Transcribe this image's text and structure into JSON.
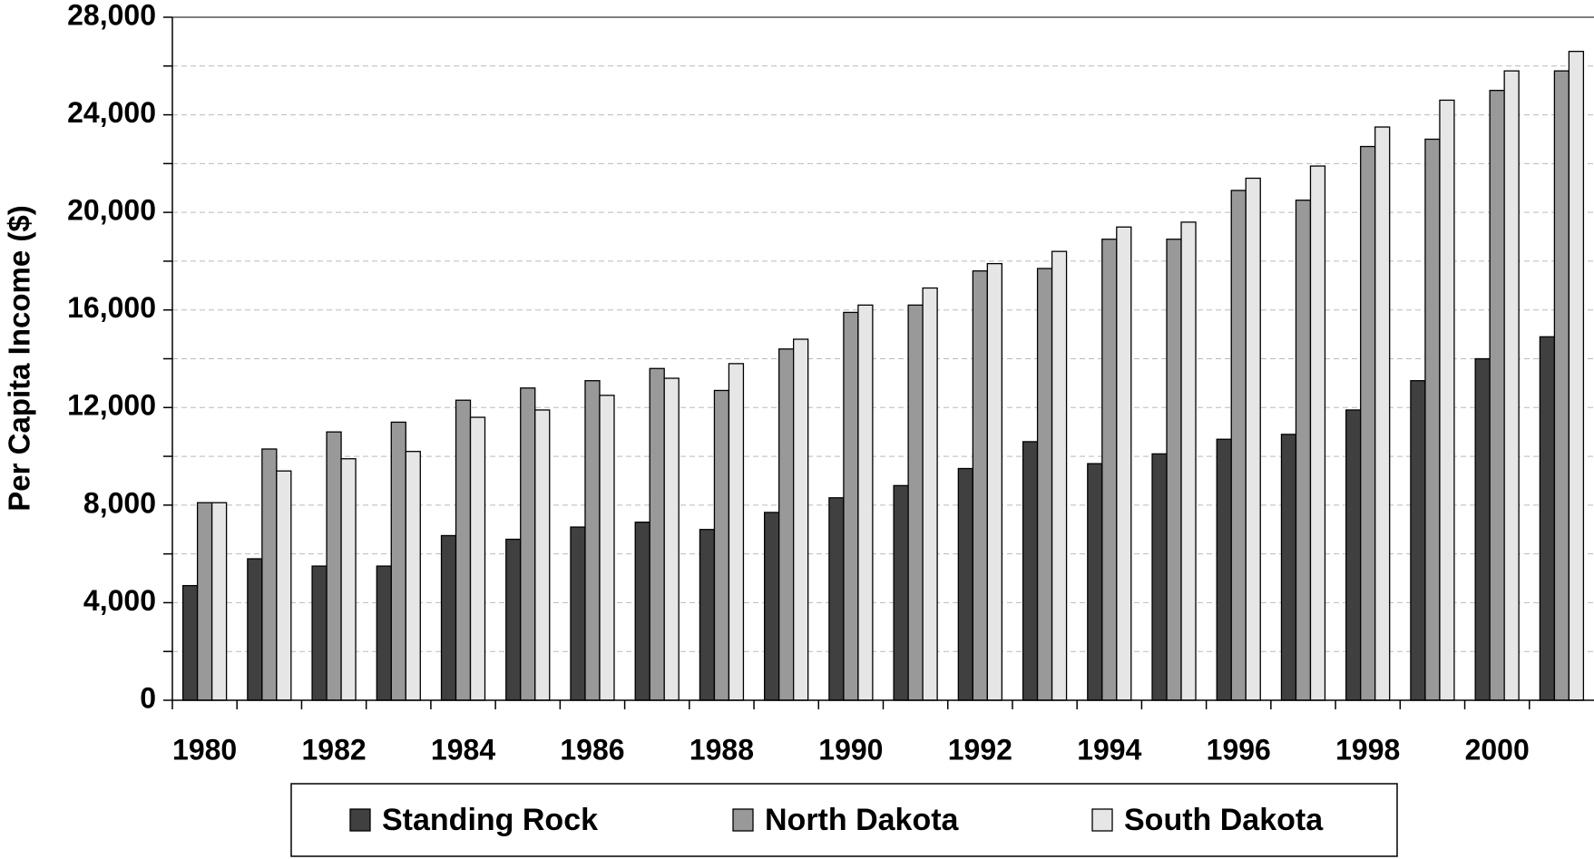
{
  "chart_data": {
    "type": "bar",
    "y_label": "Per Capita Income ($)",
    "categories": [
      "1980",
      null,
      "1982",
      null,
      "1984",
      null,
      "1986",
      null,
      "1988",
      null,
      "1990",
      null,
      "1992",
      null,
      "1994",
      null,
      "1996",
      null,
      "1998",
      null,
      "2000",
      null
    ],
    "series": [
      {
        "name": "Standing Rock",
        "color": "#404040",
        "values": [
          4700,
          5800,
          5500,
          5500,
          6750,
          6600,
          7100,
          7300,
          7000,
          7700,
          8300,
          8800,
          9500,
          10600,
          9700,
          10100,
          10700,
          10900,
          11900,
          13100,
          14000,
          14900
        ]
      },
      {
        "name": "North Dakota",
        "color": "#999999",
        "values": [
          8100,
          10300,
          11000,
          11400,
          12300,
          12800,
          13100,
          13600,
          12700,
          14400,
          15900,
          16200,
          17600,
          17700,
          18900,
          18900,
          20900,
          20500,
          22700,
          23000,
          25000,
          25800
        ]
      },
      {
        "name": "South Dakota",
        "color": "#e6e6e6",
        "values": [
          8100,
          9400,
          9900,
          10200,
          11600,
          11900,
          12500,
          13200,
          13800,
          14800,
          16200,
          16900,
          17900,
          18400,
          19400,
          19600,
          21400,
          21900,
          23500,
          24600,
          25800,
          26600
        ]
      }
    ],
    "ylim": [
      0,
      28000
    ],
    "yticks": [
      {
        "value": 0,
        "label": "0"
      },
      {
        "value": 4000,
        "label": "4,000"
      },
      {
        "value": 8000,
        "label": "8,000"
      },
      {
        "value": 12000,
        "label": "12,000"
      },
      {
        "value": 16000,
        "label": "16,000"
      },
      {
        "value": 20000,
        "label": "20,000"
      },
      {
        "value": 24000,
        "label": "24,000"
      },
      {
        "value": 28000,
        "label": "28,000"
      }
    ],
    "minor_yticks": [
      2000,
      6000,
      10000,
      14000,
      18000,
      22000,
      26000
    ],
    "grid": true,
    "legend": "bottom"
  }
}
